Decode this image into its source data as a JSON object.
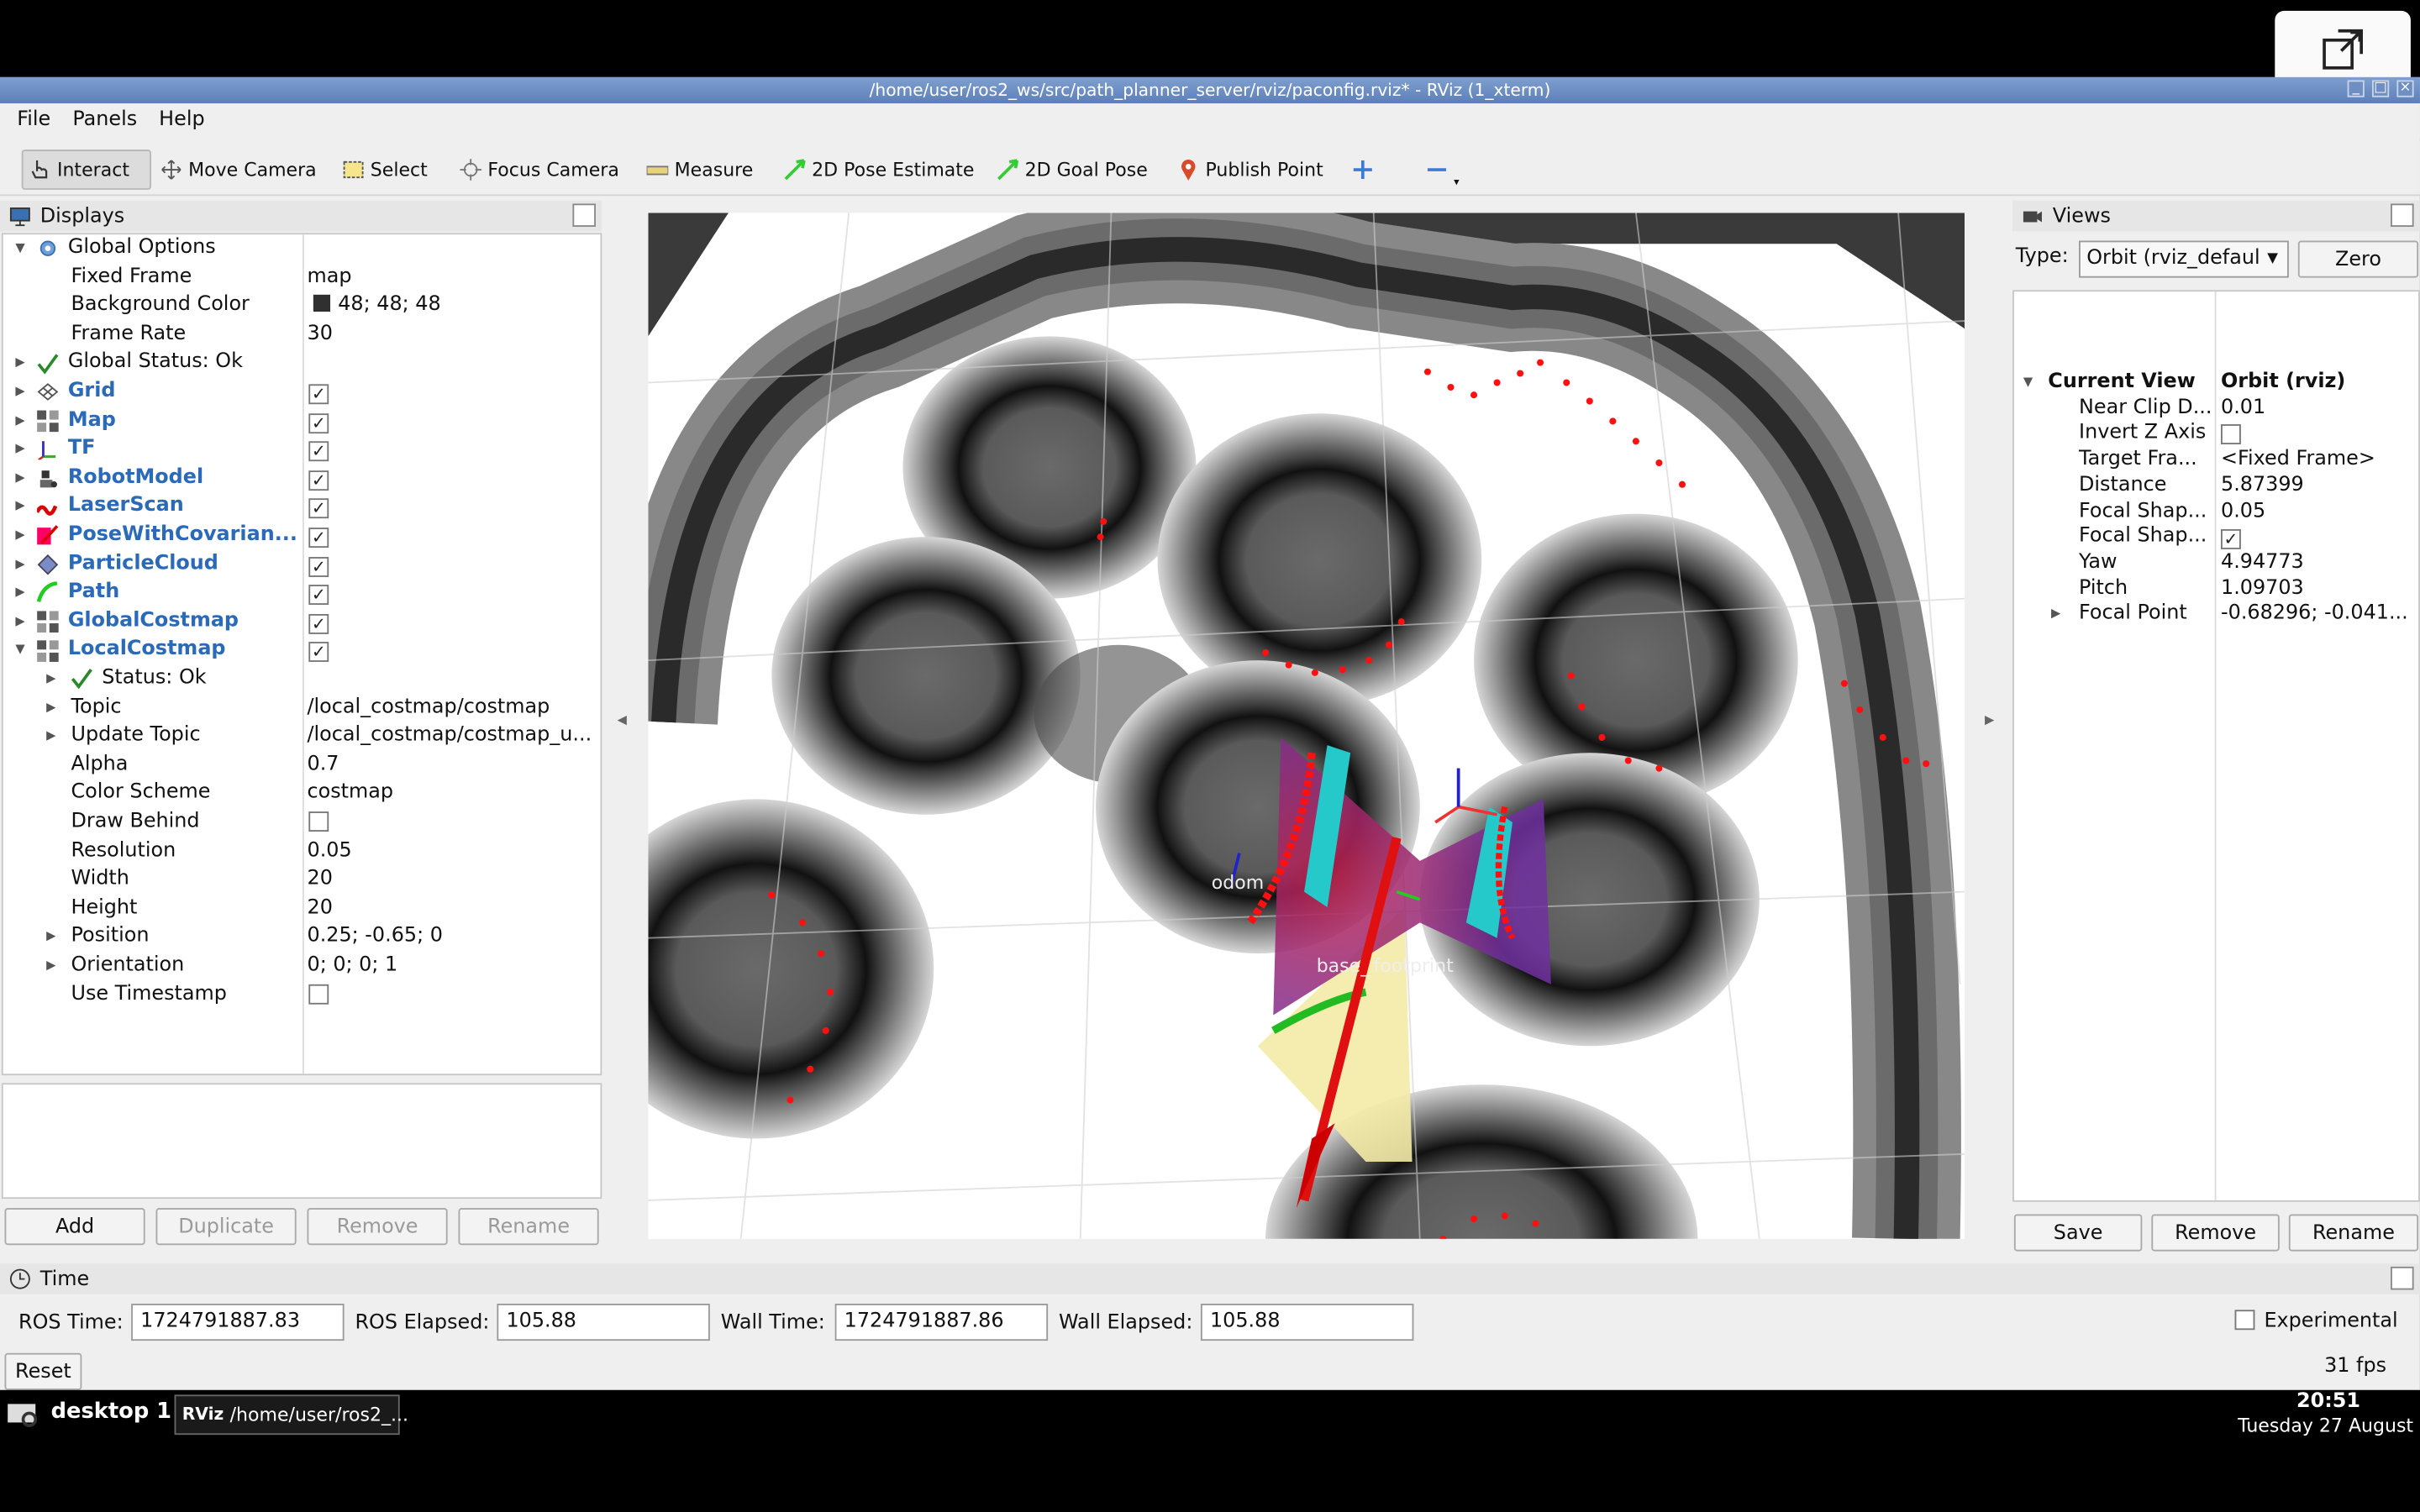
{
  "window": {
    "title": "/home/user/ros2_ws/src/path_planner_server/rviz/paconfig.rviz* - RViz (1_xterm)"
  },
  "menu": [
    "File",
    "Panels",
    "Help"
  ],
  "toolbar": [
    {
      "label": "Interact",
      "icon": "hand-pointer-icon"
    },
    {
      "label": "Move Camera",
      "icon": "move-camera-icon"
    },
    {
      "label": "Select",
      "icon": "select-icon"
    },
    {
      "label": "Focus Camera",
      "icon": "focus-camera-icon"
    },
    {
      "label": "Measure",
      "icon": "ruler-icon"
    },
    {
      "label": "2D Pose Estimate",
      "icon": "pose-arrow-icon"
    },
    {
      "label": "2D Goal Pose",
      "icon": "goal-arrow-icon"
    },
    {
      "label": "Publish Point",
      "icon": "map-pin-icon"
    }
  ],
  "displays": {
    "title": "Displays",
    "rows": [
      {
        "label": "Global Options",
        "value": "",
        "indent": 0,
        "arrow": "down",
        "icon": "gear-icon",
        "style": "normal"
      },
      {
        "label": "Fixed Frame",
        "value": "map",
        "indent": 1,
        "arrow": "",
        "icon": "",
        "style": "normal"
      },
      {
        "label": "Background Color",
        "value": "48; 48; 48",
        "indent": 1,
        "arrow": "",
        "icon": "",
        "style": "normal",
        "swatch": "#303030"
      },
      {
        "label": "Frame Rate",
        "value": "30",
        "indent": 1,
        "arrow": "",
        "icon": "",
        "style": "normal"
      },
      {
        "label": "Global Status: Ok",
        "value": "",
        "indent": 0,
        "arrow": "right",
        "icon": "check-icon",
        "style": "normal"
      },
      {
        "label": "Grid",
        "value": "",
        "indent": 0,
        "arrow": "right",
        "icon": "grid-icon",
        "style": "blue",
        "checked": true
      },
      {
        "label": "Map",
        "value": "",
        "indent": 0,
        "arrow": "right",
        "icon": "map-icon",
        "style": "blue",
        "checked": true
      },
      {
        "label": "TF",
        "value": "",
        "indent": 0,
        "arrow": "right",
        "icon": "tf-icon",
        "style": "blue",
        "checked": true
      },
      {
        "label": "RobotModel",
        "value": "",
        "indent": 0,
        "arrow": "right",
        "icon": "robot-icon",
        "style": "blue",
        "checked": true
      },
      {
        "label": "LaserScan",
        "value": "",
        "indent": 0,
        "arrow": "right",
        "icon": "laserscan-icon",
        "style": "blue",
        "checked": true
      },
      {
        "label": "PoseWithCovarian...",
        "value": "",
        "indent": 0,
        "arrow": "right",
        "icon": "pose-covariance-icon",
        "style": "blue",
        "checked": true
      },
      {
        "label": "ParticleCloud",
        "value": "",
        "indent": 0,
        "arrow": "right",
        "icon": "particle-cloud-icon",
        "style": "blue",
        "checked": true
      },
      {
        "label": "Path",
        "value": "",
        "indent": 0,
        "arrow": "right",
        "icon": "path-icon",
        "style": "blue",
        "checked": true
      },
      {
        "label": "GlobalCostmap",
        "value": "",
        "indent": 0,
        "arrow": "right",
        "icon": "map-icon",
        "style": "blue",
        "checked": true
      },
      {
        "label": "LocalCostmap",
        "value": "",
        "indent": 0,
        "arrow": "down",
        "icon": "map-icon",
        "style": "blue",
        "checked": true
      },
      {
        "label": "Status: Ok",
        "value": "",
        "indent": 1,
        "arrow": "right",
        "icon": "check-icon",
        "style": "normal"
      },
      {
        "label": "Topic",
        "value": "/local_costmap/costmap",
        "indent": 1,
        "arrow": "right",
        "icon": "",
        "style": "normal"
      },
      {
        "label": "Update Topic",
        "value": "/local_costmap/costmap_u...",
        "indent": 1,
        "arrow": "right",
        "icon": "",
        "style": "normal"
      },
      {
        "label": "Alpha",
        "value": "0.7",
        "indent": 1,
        "arrow": "",
        "icon": "",
        "style": "normal"
      },
      {
        "label": "Color Scheme",
        "value": "costmap",
        "indent": 1,
        "arrow": "",
        "icon": "",
        "style": "normal"
      },
      {
        "label": "Draw Behind",
        "value": "",
        "indent": 1,
        "arrow": "",
        "icon": "",
        "style": "normal",
        "checked": false
      },
      {
        "label": "Resolution",
        "value": "0.05",
        "indent": 1,
        "arrow": "",
        "icon": "",
        "style": "normal"
      },
      {
        "label": "Width",
        "value": "20",
        "indent": 1,
        "arrow": "",
        "icon": "",
        "style": "normal"
      },
      {
        "label": "Height",
        "value": "20",
        "indent": 1,
        "arrow": "",
        "icon": "",
        "style": "normal"
      },
      {
        "label": "Position",
        "value": "0.25; -0.65; 0",
        "indent": 1,
        "arrow": "right",
        "icon": "",
        "style": "normal"
      },
      {
        "label": "Orientation",
        "value": "0; 0; 0; 1",
        "indent": 1,
        "arrow": "right",
        "icon": "",
        "style": "normal"
      },
      {
        "label": "Use Timestamp",
        "value": "",
        "indent": 1,
        "arrow": "",
        "icon": "",
        "style": "normal",
        "checked": false
      }
    ],
    "buttons": {
      "add": "Add",
      "duplicate": "Duplicate",
      "remove": "Remove",
      "rename": "Rename"
    }
  },
  "viewport": {
    "labels": {
      "odom": "odom",
      "base": "base_",
      "footprint": "footprint"
    }
  },
  "views": {
    "title": "Views",
    "type_label": "Type:",
    "type_value": "Orbit (rviz_defaul",
    "zero": "Zero",
    "rows": [
      {
        "label": "Current View",
        "value": "Orbit (rviz)",
        "bold": true,
        "arrow": "down",
        "indent": 0
      },
      {
        "label": "Near Clip D...",
        "value": "0.01",
        "indent": 1
      },
      {
        "label": "Invert Z Axis",
        "value": "",
        "indent": 1,
        "checked": false
      },
      {
        "label": "Target Fra...",
        "value": "<Fixed Frame>",
        "indent": 1
      },
      {
        "label": "Distance",
        "value": "5.87399",
        "indent": 1
      },
      {
        "label": "Focal Shap...",
        "value": "0.05",
        "indent": 1
      },
      {
        "label": "Focal Shap...",
        "value": "",
        "indent": 1,
        "checked": true
      },
      {
        "label": "Yaw",
        "value": "4.94773",
        "indent": 1
      },
      {
        "label": "Pitch",
        "value": "1.09703",
        "indent": 1
      },
      {
        "label": "Focal Point",
        "value": "-0.68296; -0.041...",
        "indent": 1,
        "arrow": "right"
      }
    ],
    "buttons": {
      "save": "Save",
      "remove": "Remove",
      "rename": "Rename"
    }
  },
  "time": {
    "title": "Time",
    "ros_time_label": "ROS Time:",
    "ros_time": "1724791887.83",
    "ros_elapsed_label": "ROS Elapsed:",
    "ros_elapsed": "105.88",
    "wall_time_label": "Wall Time:",
    "wall_time": "1724791887.86",
    "wall_elapsed_label": "Wall Elapsed:",
    "wall_elapsed": "105.88",
    "experimental": "Experimental",
    "reset": "Reset",
    "fps": "31 fps"
  },
  "taskbar": {
    "desktop": "desktop 1",
    "task": "/home/user/ros2_...",
    "clock": "20:51",
    "date": "Tuesday 27 August"
  },
  "colors": {
    "title_bar": "#5c7fb8",
    "link_blue": "#2a6ab8",
    "laser_red": "#ff0000"
  }
}
